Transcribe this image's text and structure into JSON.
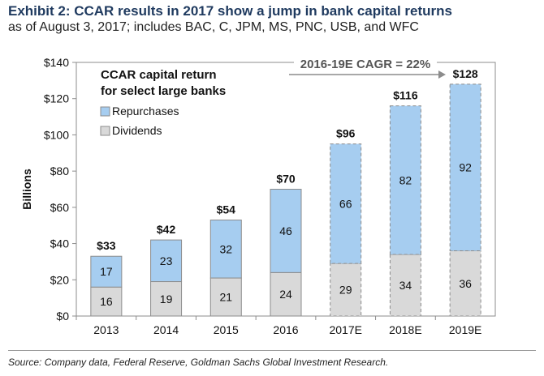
{
  "header": {
    "title": "Exhibit 2: CCAR results in 2017 show a jump in bank capital returns",
    "subtitle": "as of August 3, 2017; includes BAC, C, JPM, MS, PNC, USB, and WFC"
  },
  "footer": {
    "source": "Source: Company data, Federal Reserve, Goldman Sachs Global Investment Research."
  },
  "chart_data": {
    "type": "bar",
    "stacked": true,
    "title_lines": [
      "CCAR capital return",
      "for select large banks"
    ],
    "annotation": "2016-19E CAGR = 22%",
    "xlabel": "",
    "ylabel": "Billions",
    "ylim": [
      0,
      140
    ],
    "yticks": [
      0,
      20,
      40,
      60,
      80,
      100,
      120,
      140
    ],
    "ytick_labels": [
      "$0",
      "$20",
      "$40",
      "$60",
      "$80",
      "$100",
      "$120",
      "$140"
    ],
    "categories": [
      "2013",
      "2014",
      "2015",
      "2016",
      "2017E",
      "2018E",
      "2019E"
    ],
    "estimate_flags": [
      false,
      false,
      false,
      false,
      true,
      true,
      true
    ],
    "series": [
      {
        "name": "Dividends",
        "values": [
          16,
          19,
          21,
          24,
          29,
          34,
          36
        ],
        "color": "#d9d9d9"
      },
      {
        "name": "Repurchases",
        "values": [
          17,
          23,
          32,
          46,
          66,
          82,
          92
        ],
        "color": "#a6cdf0"
      }
    ],
    "totals": [
      33,
      42,
      54,
      70,
      96,
      116,
      128
    ],
    "total_labels": [
      "$33",
      "$42",
      "$54",
      "$70",
      "$96",
      "$116",
      "$128"
    ],
    "legend": [
      "Repurchases",
      "Dividends"
    ],
    "legend_position": "top-left",
    "grid": false
  }
}
